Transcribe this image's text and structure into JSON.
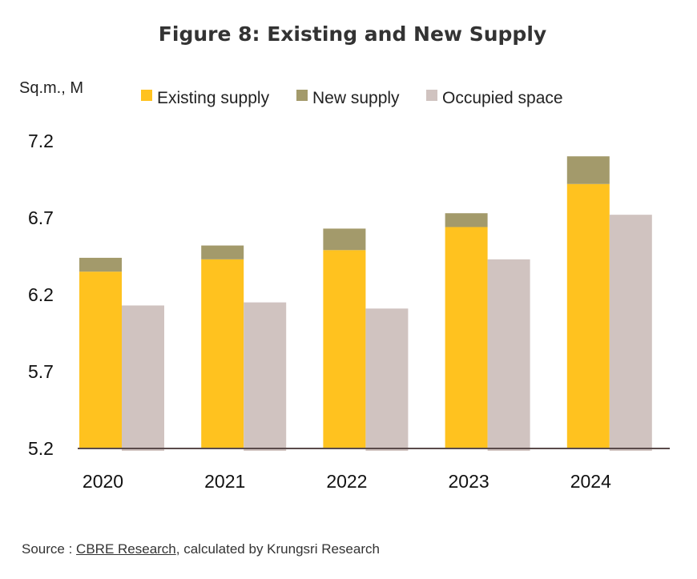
{
  "chart_data": {
    "type": "bar",
    "title": "Figure 8: Existing and New Supply",
    "unit_label": "Sq.m., M",
    "categories": [
      "2020",
      "2021",
      "2022",
      "2023",
      "2024"
    ],
    "series": [
      {
        "name": "Existing supply",
        "values": [
          6.35,
          6.43,
          6.49,
          6.64,
          6.92
        ],
        "color": "#FFC21F",
        "stack": "supply"
      },
      {
        "name": "New supply",
        "values": [
          0.09,
          0.09,
          0.14,
          0.09,
          0.18
        ],
        "color": "#A39A6B",
        "stack": "supply"
      },
      {
        "name": "Occupied space",
        "values": [
          6.13,
          6.15,
          6.11,
          6.43,
          6.72
        ],
        "color": "#D0C3C0",
        "stack": "occupied"
      }
    ],
    "yticks": [
      "7.2",
      "6.7",
      "6.2",
      "5.7",
      "5.2"
    ],
    "ylim": [
      5.2,
      7.2
    ],
    "grid": false,
    "legend": "top"
  },
  "source": {
    "prefix": "Source : ",
    "link": "CBRE Research",
    "suffix": ", calculated by Krungsri Research"
  }
}
